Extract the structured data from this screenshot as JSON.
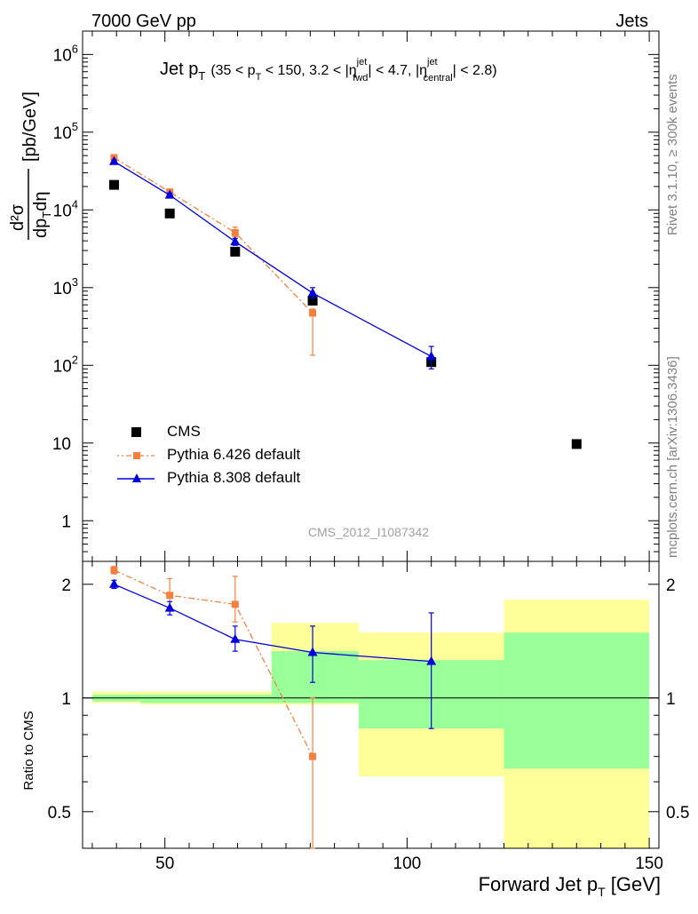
{
  "header": {
    "left_label": "7000 GeV pp",
    "right_label": "Jets",
    "side_label": "Rivet 3.1.10, ≥ 300k events",
    "side_label_2": "mcplots.cern.ch [arXiv:1306.3436]",
    "watermark": "CMS_2012_I1087342"
  },
  "chart_data": [
    {
      "type": "scatter",
      "panel": "main",
      "title_main": "Jet p",
      "title_sub_T": "T",
      "title_range_a": "(35 < p",
      "title_range_T": "T",
      "title_range_b": " < 150, 3.2 < |η",
      "title_sup_jet1": "jet",
      "title_sub_fwd": "fwd",
      "title_range_c": "| < 4.7, |η",
      "title_sup_jet2": "jet",
      "title_sub_central": "central",
      "title_range_d": "| < 2.8)",
      "ylabel": "d²σ/dp_T dη [pb/GeV]",
      "ylabel_num": "d²σ",
      "ylabel_den": "dp",
      "ylabel_den_T": "T",
      "ylabel_den_b": "dη",
      "ylabel_unit": "[pb/GeV]",
      "yscale": "log",
      "ylim": [
        0.3,
        2000000
      ],
      "xlim": [
        33,
        152
      ],
      "y_ticks": [
        {
          "value": 1,
          "label": "1"
        },
        {
          "value": 10,
          "label": "10"
        },
        {
          "value": 100,
          "label": "10",
          "exp": "2"
        },
        {
          "value": 1000,
          "label": "10",
          "exp": "3"
        },
        {
          "value": 10000,
          "label": "10",
          "exp": "4"
        },
        {
          "value": 100000,
          "label": "10",
          "exp": "5"
        },
        {
          "value": 1000000,
          "label": "10",
          "exp": "6"
        }
      ],
      "series": [
        {
          "name": "CMS",
          "color": "#000000",
          "marker": "square",
          "x": [
            39.5,
            51,
            64.5,
            80.5,
            105,
            135
          ],
          "y": [
            21000,
            9000,
            2900,
            680,
            110,
            9.7
          ]
        },
        {
          "name": "Pythia 6.426 default",
          "color": "#f5803e",
          "marker": "square-small",
          "line": "dashdot",
          "x": [
            39.5,
            51,
            64.5,
            80.5
          ],
          "y": [
            47000,
            17000,
            5100,
            470
          ],
          "err_lo": [
            3000,
            1500,
            600,
            335
          ],
          "err_hi": [
            3000,
            1500,
            900,
            60
          ]
        },
        {
          "name": "Pythia 8.308 default",
          "color": "#0000dd",
          "marker": "triangle",
          "line": "solid",
          "x": [
            39.5,
            51,
            64.5,
            80.5,
            105
          ],
          "y": [
            42000,
            15500,
            3900,
            850,
            130
          ],
          "err_lo": [
            2000,
            1000,
            400,
            120,
            40
          ],
          "err_hi": [
            2000,
            1000,
            400,
            150,
            45
          ]
        }
      ]
    },
    {
      "type": "scatter",
      "panel": "ratio",
      "ylabel": "Ratio to CMS",
      "xlabel": "Forward Jet p",
      "xlabel_T": "T",
      "xlabel_unit": " [GeV]",
      "yscale": "log",
      "ylim": [
        0.4,
        2.3
      ],
      "xlim": [
        33,
        152
      ],
      "x_ticks": [
        50,
        100,
        150
      ],
      "y_ticks": [
        {
          "value": 0.5,
          "label": "0.5"
        },
        {
          "value": 1,
          "label": "1"
        },
        {
          "value": 2,
          "label": "2"
        }
      ],
      "uncertainty_bands": [
        {
          "x0": 35,
          "x1": 45,
          "yellow": [
            0.97,
            1.04
          ],
          "green": [
            0.98,
            1.02
          ]
        },
        {
          "x0": 45,
          "x1": 72,
          "yellow": [
            0.96,
            1.04
          ],
          "green": [
            0.97,
            1.02
          ]
        },
        {
          "x0": 72,
          "x1": 90,
          "yellow": [
            0.96,
            1.58
          ],
          "green": [
            0.97,
            1.33
          ]
        },
        {
          "x0": 90,
          "x1": 120,
          "yellow": [
            0.62,
            1.49
          ],
          "green": [
            0.83,
            1.26
          ]
        },
        {
          "x0": 120,
          "x1": 150,
          "yellow": [
            0.4,
            1.82
          ],
          "green": [
            0.65,
            1.49
          ]
        }
      ],
      "band_colors": {
        "yellow": "#ffff99",
        "green": "#99ff99"
      },
      "series": [
        {
          "name": "Pythia 6.426 default",
          "color": "#f5803e",
          "marker": "square-small",
          "line": "dashdot",
          "x": [
            39.5,
            51,
            64.5,
            80.5
          ],
          "y": [
            2.18,
            1.87,
            1.77,
            0.7
          ],
          "err_lo": [
            0.05,
            0.13,
            0.18,
            0.3
          ],
          "err_hi": [
            0.05,
            0.2,
            0.33,
            0.3
          ]
        },
        {
          "name": "Pythia 8.308 default",
          "color": "#0000dd",
          "marker": "triangle",
          "line": "solid",
          "x": [
            39.5,
            51,
            64.5,
            80.5,
            105
          ],
          "y": [
            2.0,
            1.73,
            1.43,
            1.32,
            1.25
          ],
          "err_lo": [
            0.05,
            0.07,
            0.1,
            0.22,
            0.42
          ],
          "err_hi": [
            0.05,
            0.07,
            0.12,
            0.23,
            0.43
          ]
        }
      ]
    }
  ]
}
